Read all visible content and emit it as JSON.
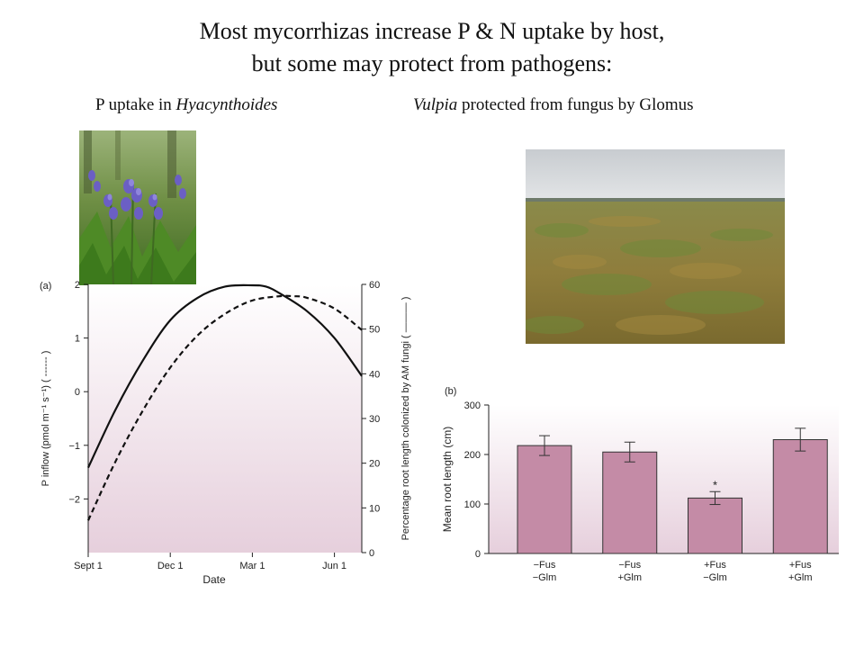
{
  "slide": {
    "title_line1": "Most mycorrhizas increase P & N uptake by host,",
    "title_line2": "but some may protect from pathogens:",
    "left_caption_prefix": "P uptake in ",
    "left_caption_italic": "Hyacynthoides",
    "right_caption_italic": "Vulpia",
    "right_caption_suffix": " protected from fungus by Glomus"
  },
  "photos": {
    "bluebell": "bluebell-flowers-photo",
    "grassland": "grassland-field-photo"
  },
  "colors": {
    "panel_gradient_top": "#ffffff",
    "panel_gradient_bottom": "#e6cfdc",
    "bar_fill": "#c48ba6",
    "bar_stroke": "#333333"
  },
  "chart_data": [
    {
      "type": "line",
      "panel_label": "(a)",
      "title": "",
      "xlabel": "Date",
      "x_ticks": [
        "Sept 1",
        "Dec 1",
        "Mar 1",
        "Jun 1"
      ],
      "x_tick_positions": [
        0,
        3,
        6,
        9
      ],
      "xlim": [
        0,
        10
      ],
      "ylabel_left": "P inflow (pmol m⁻¹ s⁻¹) ( ------ )",
      "ylabel_right": "Percentage root length colonized by AM fungi ( ——— )",
      "ylim_left": [
        -3,
        2
      ],
      "y_ticks_left": [
        "2",
        "1",
        "0",
        "−1",
        "−2"
      ],
      "y_tick_values_left": [
        2,
        1,
        0,
        -1,
        -2
      ],
      "ylim_right": [
        0,
        60
      ],
      "y_ticks_right": [
        "60",
        "50",
        "40",
        "30",
        "20",
        "10",
        "0"
      ],
      "y_tick_values_right": [
        60,
        50,
        40,
        30,
        20,
        10,
        0
      ],
      "series": [
        {
          "axis": "right",
          "style": "solid",
          "x": [
            0,
            1,
            2,
            3,
            4,
            5,
            6,
            6.5,
            7,
            8,
            9,
            10
          ],
          "y": [
            19,
            32,
            43,
            52,
            57,
            59.5,
            59.8,
            59.5,
            58,
            54,
            48,
            39.5
          ]
        },
        {
          "axis": "left",
          "style": "dashed",
          "x": [
            0,
            1,
            2,
            3,
            4,
            5,
            6,
            7,
            7.5,
            8,
            9,
            10
          ],
          "y": [
            -2.4,
            -1.3,
            -0.35,
            0.45,
            1.05,
            1.45,
            1.7,
            1.78,
            1.78,
            1.75,
            1.55,
            1.15
          ]
        }
      ]
    },
    {
      "type": "bar",
      "panel_label": "(b)",
      "title": "",
      "xlabel": "",
      "ylabel": "Mean root length (cm)",
      "ylim": [
        0,
        300
      ],
      "y_ticks": [
        "300",
        "200",
        "100",
        "0"
      ],
      "y_tick_values": [
        300,
        200,
        100,
        0
      ],
      "categories": [
        {
          "line1": "−Fus",
          "line2": "−Glm"
        },
        {
          "line1": "−Fus",
          "line2": "+Glm"
        },
        {
          "line1": "+Fus",
          "line2": "−Glm"
        },
        {
          "line1": "+Fus",
          "line2": "+Glm"
        }
      ],
      "values": [
        218,
        205,
        112,
        230
      ],
      "errors": [
        20,
        20,
        13,
        23
      ],
      "annotations": [
        "",
        "",
        "*",
        ""
      ]
    }
  ]
}
